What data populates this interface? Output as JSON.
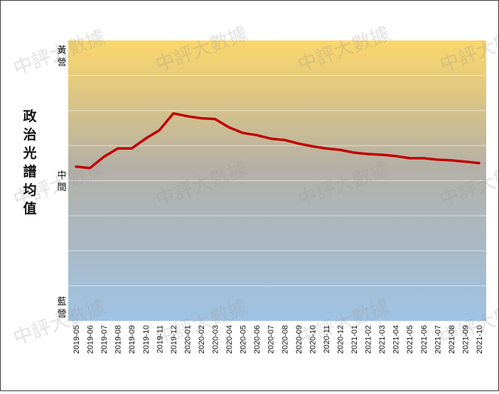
{
  "chart_data": {
    "type": "line",
    "title": "",
    "ylabel": "政治光譜均值",
    "y_ticks": [
      "黃營",
      "中間",
      "藍營"
    ],
    "ylim": [
      -1,
      1
    ],
    "grid": true,
    "background": "gradient from yellow (top) through grey to light blue (bottom)",
    "categories": [
      "2019-05",
      "2019-06",
      "2019-07",
      "2019-08",
      "2019-09",
      "2019-10",
      "2019-11",
      "2019-12",
      "2020-01",
      "2020-02",
      "2020-03",
      "2020-04",
      "2020-05",
      "2020-06",
      "2020-07",
      "2020-08",
      "2020-09",
      "2020-10",
      "2020-11",
      "2020-12",
      "2021-01",
      "2021-02",
      "2021-03",
      "2021-04",
      "2021-05",
      "2021-06",
      "2021-07",
      "2021-08",
      "2021-09",
      "2021-10"
    ],
    "series": [
      {
        "values": [
          0.1,
          0.09,
          0.17,
          0.23,
          0.23,
          0.3,
          0.36,
          0.48,
          0.46,
          0.445,
          0.44,
          0.38,
          0.34,
          0.325,
          0.3,
          0.29,
          0.265,
          0.245,
          0.23,
          0.22,
          0.2,
          0.19,
          0.185,
          0.175,
          0.16,
          0.16,
          0.15,
          0.145,
          0.135,
          0.125
        ],
        "color": "#c00000"
      }
    ]
  },
  "watermark": "中評大數據",
  "colors": {
    "line": "#c00000",
    "top": "#fbd76a",
    "middle": "#b4b0a6",
    "bottom": "#9fc3e4"
  }
}
